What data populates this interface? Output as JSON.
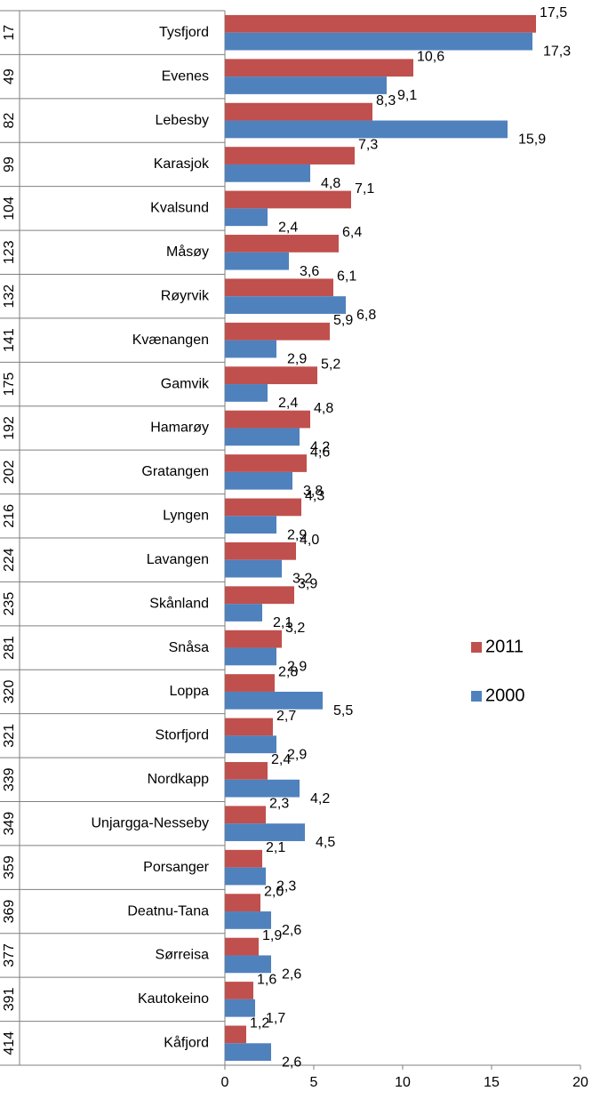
{
  "chart_data": {
    "type": "bar",
    "orientation": "horizontal",
    "ranks": [
      17,
      49,
      82,
      99,
      104,
      123,
      132,
      141,
      175,
      192,
      202,
      216,
      224,
      235,
      281,
      320,
      321,
      339,
      349,
      359,
      369,
      377,
      391,
      414
    ],
    "categories": [
      "Tysfjord",
      "Evenes",
      "Lebesby",
      "Karasjok",
      "Kvalsund",
      "Måsøy",
      "Røyrvik",
      "Kvænangen",
      "Gamvik",
      "Hamarøy",
      "Gratangen",
      "Lyngen",
      "Lavangen",
      "Skånland",
      "Snåsa",
      "Loppa",
      "Storfjord",
      "Nordkapp",
      "Unjargga-Nesseby",
      "Porsanger",
      "Deatnu-Tana",
      "Sørreisa",
      "Kautokeino",
      "Kåfjord"
    ],
    "series": [
      {
        "name": "2011",
        "color": "#c0504d",
        "values": [
          17.5,
          10.6,
          8.3,
          7.3,
          7.1,
          6.4,
          6.1,
          5.9,
          5.2,
          4.8,
          4.6,
          4.3,
          4.0,
          3.9,
          3.2,
          2.8,
          2.7,
          2.4,
          2.3,
          2.1,
          2.0,
          1.9,
          1.6,
          1.2
        ],
        "value_labels": [
          "17,5",
          "10,6",
          "8,3",
          "7,3",
          "7,1",
          "6,4",
          "6,1",
          "5,9",
          "5,2",
          "4,8",
          "4,6",
          "4,3",
          "4,0",
          "3,9",
          "3,2",
          "2,8",
          "2,7",
          "2,4",
          "2,3",
          "2,1",
          "2,0",
          "1,9",
          "1,6",
          "1,2"
        ]
      },
      {
        "name": "2000",
        "color": "#4f81bd",
        "values": [
          17.3,
          9.1,
          15.9,
          4.8,
          2.4,
          3.6,
          6.8,
          2.9,
          2.4,
          4.2,
          3.8,
          2.9,
          3.2,
          2.1,
          2.9,
          5.5,
          2.9,
          4.2,
          4.5,
          2.3,
          2.6,
          2.6,
          1.7,
          2.6
        ],
        "value_labels": [
          "17,3",
          "9,1",
          "15,9",
          "4,8",
          "2,4",
          "3,6",
          "6,8",
          "2,9",
          "2,4",
          "4,2",
          "3,8",
          "2,9",
          "3,2",
          "2,1",
          "2,9",
          "5,5",
          "2,9",
          "4,2",
          "4,5",
          "2,3",
          "2,6",
          "2,6",
          "1,7",
          "2,6"
        ]
      }
    ],
    "xlim": [
      0,
      20
    ],
    "xticks": [
      0,
      5,
      10,
      15,
      20
    ],
    "legend": "right"
  }
}
